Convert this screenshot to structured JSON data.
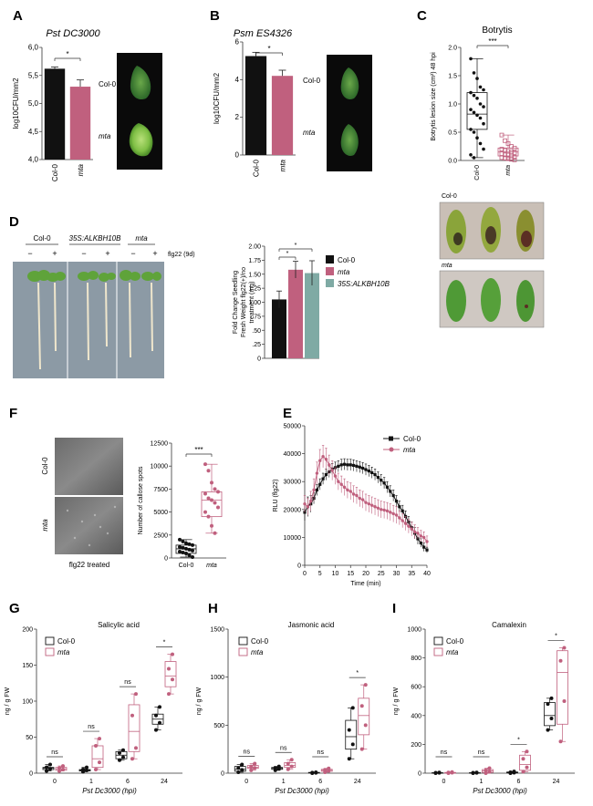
{
  "colors": {
    "col0": "#111111",
    "mta": "#c0607e",
    "alkbh": "#7faaa4",
    "axis": "#333333"
  },
  "A": {
    "letter": "A",
    "title": "Pst DC3000",
    "chart_data": {
      "type": "bar",
      "title": "Pst DC3000",
      "ylabel": "log10CFU/mm2",
      "ylim": [
        4.0,
        6.0
      ],
      "yticks": [
        "4,0",
        "4,5",
        "5,0",
        "5,5",
        "6,0"
      ],
      "categories": [
        "Col-0",
        "mta"
      ],
      "values": [
        5.62,
        5.3
      ],
      "errors": [
        0.03,
        0.12
      ],
      "significance": "*"
    },
    "leaf_labels": [
      "Col-0",
      "mta"
    ]
  },
  "B": {
    "letter": "B",
    "title": "Psm ES4326",
    "chart_data": {
      "type": "bar",
      "title": "Psm ES4326",
      "ylabel": "log10CFU/mm2",
      "ylim": [
        0,
        6
      ],
      "yticks": [
        "0",
        "2",
        "4",
        "6"
      ],
      "categories": [
        "Col-0",
        "mta"
      ],
      "values": [
        5.25,
        4.2
      ],
      "errors": [
        0.2,
        0.3
      ],
      "significance": "*"
    },
    "leaf_labels": [
      "Col-0",
      "mta"
    ]
  },
  "C": {
    "letter": "C",
    "title": "Botrytis",
    "chart_data": {
      "type": "box",
      "title": "Botrytis",
      "ylabel": "Botrytis lesion size (cm²) 48 hpi",
      "ylim": [
        0,
        2.0
      ],
      "yticks": [
        "0.0",
        "0.5",
        "1.0",
        "1.5",
        "2.0"
      ],
      "categories": [
        "Col-0",
        "mta"
      ],
      "significance": "***",
      "series": [
        {
          "name": "Col-0",
          "q1": 0.55,
          "median": 0.82,
          "q3": 1.2,
          "min": 0.05,
          "max": 1.8,
          "points": [
            1.8,
            1.55,
            1.45,
            1.3,
            1.25,
            1.2,
            1.15,
            1.1,
            1.0,
            0.95,
            0.9,
            0.85,
            0.8,
            0.75,
            0.65,
            0.55,
            0.5,
            0.4,
            0.3,
            0.2,
            0.1,
            0.05
          ]
        },
        {
          "name": "mta",
          "q1": 0.08,
          "median": 0.15,
          "q3": 0.22,
          "min": 0.01,
          "max": 0.45,
          "points": [
            0.45,
            0.35,
            0.3,
            0.25,
            0.22,
            0.2,
            0.18,
            0.16,
            0.15,
            0.14,
            0.12,
            0.1,
            0.1,
            0.08,
            0.06,
            0.05,
            0.04,
            0.03,
            0.02,
            0.01
          ]
        }
      ]
    },
    "photo_labels": [
      "Col-0",
      "mta"
    ]
  },
  "D": {
    "letter": "D",
    "genotypes": [
      "Col-0",
      "35S:ALKBH10B",
      "mta"
    ],
    "signs": [
      "−",
      "+",
      "−",
      "+",
      "−",
      "+"
    ],
    "treatment": "flg22 (9d)",
    "chart_data": {
      "type": "bar",
      "ylabel": "Fold Change Seedling Fresh Weight flg22(+)/no treatment (mg)",
      "ylim": [
        0,
        2.0
      ],
      "yticks": [
        "0",
        ".25",
        ".50",
        ".75",
        "1.00",
        "1.25",
        "1.50",
        "1.75",
        "2.00"
      ],
      "categories": [
        "Col-0",
        "mta",
        "35S:ALKBH10B"
      ],
      "values": [
        1.05,
        1.58,
        1.52
      ],
      "errors": [
        0.15,
        0.15,
        0.22
      ],
      "significance": [
        "*",
        "*"
      ],
      "legend": [
        "Col-0",
        "mta",
        "35S:ALKBH10B"
      ]
    }
  },
  "E": {
    "letter": "E",
    "chart_data": {
      "type": "line",
      "ylabel": "RLU (flg22)",
      "xlabel": "Time (min)",
      "xlim": [
        0,
        40
      ],
      "ylim": [
        0,
        50000
      ],
      "xticks": [
        "0",
        "5",
        "10",
        "15",
        "20",
        "25",
        "30",
        "35",
        "40"
      ],
      "yticks": [
        "0",
        "10000",
        "20000",
        "30000",
        "40000",
        "50000"
      ],
      "legend": [
        "Col-0",
        "mta"
      ],
      "series": [
        {
          "name": "Col-0",
          "x": [
            0,
            1,
            2,
            3,
            4,
            5,
            6,
            7,
            8,
            9,
            10,
            11,
            12,
            13,
            14,
            15,
            16,
            17,
            18,
            19,
            20,
            21,
            22,
            23,
            24,
            25,
            26,
            27,
            28,
            29,
            30,
            31,
            32,
            33,
            34,
            35,
            36,
            37,
            38,
            39,
            40
          ],
          "y": [
            19000,
            21000,
            22000,
            24000,
            27000,
            29000,
            31000,
            32500,
            33500,
            34500,
            35000,
            35500,
            36000,
            36200,
            36000,
            36000,
            35800,
            35500,
            35200,
            34800,
            34300,
            33800,
            33200,
            32500,
            31500,
            30500,
            29500,
            28000,
            26500,
            25000,
            23000,
            21000,
            19500,
            17500,
            15500,
            13500,
            11500,
            9500,
            8000,
            6500,
            5500
          ],
          "err": [
            3000,
            3500,
            3000,
            2000,
            2000,
            2000,
            2000,
            2000,
            2000,
            2000,
            2000,
            2000,
            2000,
            2000,
            2000,
            2000,
            2000,
            2000,
            2000,
            2000,
            2000,
            2000,
            2000,
            2000,
            2000,
            2000,
            2000,
            2000,
            2000,
            2000,
            2000,
            2000,
            2000,
            2000,
            2000,
            2000,
            2000,
            2000,
            1500,
            1500,
            1000
          ]
        },
        {
          "name": "mta",
          "x": [
            0,
            1,
            2,
            3,
            4,
            5,
            6,
            7,
            8,
            9,
            10,
            11,
            12,
            13,
            14,
            15,
            16,
            17,
            18,
            19,
            20,
            21,
            22,
            23,
            24,
            25,
            26,
            27,
            28,
            29,
            30,
            31,
            32,
            33,
            34,
            35,
            36,
            37,
            38,
            39,
            40
          ],
          "y": [
            22000,
            21000,
            23000,
            27000,
            33000,
            37500,
            39000,
            38000,
            36000,
            34000,
            32000,
            30000,
            29000,
            28000,
            27000,
            26500,
            25500,
            25000,
            24000,
            23500,
            22500,
            22000,
            21500,
            21000,
            20500,
            20000,
            19800,
            19500,
            19000,
            18500,
            18000,
            17000,
            16000,
            15000,
            14000,
            13000,
            12000,
            11500,
            10500,
            10000,
            8500
          ],
          "err": [
            3000,
            3000,
            3500,
            4000,
            4000,
            4000,
            4000,
            4000,
            3500,
            3500,
            3000,
            3000,
            3000,
            3000,
            3000,
            3000,
            3000,
            3000,
            3000,
            3000,
            3000,
            3000,
            3000,
            3000,
            3000,
            3000,
            3000,
            3000,
            3000,
            3000,
            3000,
            2500,
            2500,
            2500,
            2500,
            2500,
            2500,
            2000,
            2000,
            2000,
            2000
          ]
        }
      ]
    }
  },
  "F": {
    "letter": "F",
    "image_labels": [
      "Col-0",
      "mta"
    ],
    "caption": "flg22 treated",
    "chart_data": {
      "type": "box",
      "ylabel": "Number of callose spots",
      "ylim": [
        0,
        12500
      ],
      "yticks": [
        "0",
        "2500",
        "5000",
        "7500",
        "10000",
        "12500"
      ],
      "categories": [
        "Col-0",
        "mta"
      ],
      "significance": "***",
      "series": [
        {
          "name": "Col-0",
          "q1": 500,
          "median": 1000,
          "q3": 1400,
          "min": 100,
          "max": 2000,
          "points": [
            2000,
            1800,
            1600,
            1500,
            1400,
            1200,
            1100,
            1000,
            900,
            800,
            700,
            600,
            500,
            300,
            100
          ]
        },
        {
          "name": "mta",
          "q1": 4500,
          "median": 6300,
          "q3": 7200,
          "min": 2700,
          "max": 10200,
          "points": [
            10200,
            9500,
            8200,
            7500,
            7200,
            7000,
            6500,
            6300,
            6000,
            5500,
            5000,
            4500,
            3500,
            2700
          ]
        }
      ]
    }
  },
  "G": {
    "letter": "G",
    "chart_data": {
      "type": "box",
      "title": "Salicylic acid",
      "ylabel": "ng / g FW",
      "xlabel": "Pst Dc3000 (hpi)",
      "ylim": [
        0,
        200
      ],
      "yticks": [
        "0",
        "50",
        "100",
        "150",
        "200"
      ],
      "categories": [
        "0",
        "1",
        "6",
        "24"
      ],
      "significance": [
        "ns",
        "ns",
        "ns",
        "*"
      ],
      "legend": [
        "Col-0",
        "mta"
      ],
      "series": [
        {
          "name": "Col-0",
          "boxes": [
            [
              3,
              5,
              7,
              8,
              12
            ],
            [
              2,
              3,
              4,
              5,
              8
            ],
            [
              18,
              20,
              25,
              30,
              32
            ],
            [
              60,
              68,
              75,
              82,
              92
            ]
          ],
          "points": [
            [
              3,
              6,
              8,
              12
            ],
            [
              2,
              4,
              5,
              8
            ],
            [
              18,
              22,
              28,
              32
            ],
            [
              60,
              70,
              80,
              92
            ]
          ]
        },
        {
          "name": "mta",
          "boxes": [
            [
              3,
              4,
              6,
              8,
              10
            ],
            [
              5,
              8,
              20,
              38,
              48
            ],
            [
              20,
              30,
              58,
              95,
              110
            ],
            [
              110,
              120,
              135,
              155,
              165
            ]
          ],
          "points": [
            [
              3,
              5,
              7,
              10
            ],
            [
              5,
              15,
              38,
              48
            ],
            [
              20,
              35,
              80,
              110
            ],
            [
              110,
              130,
              145,
              165
            ]
          ]
        }
      ]
    }
  },
  "H": {
    "letter": "H",
    "chart_data": {
      "type": "box",
      "title": "Jasmonic acid",
      "ylabel": "ng / g FW",
      "xlabel": "Pst Dc3000 (hpi)",
      "ylim": [
        0,
        1500
      ],
      "yticks": [
        "0",
        "500",
        "1000",
        "1500"
      ],
      "categories": [
        "0",
        "1",
        "6",
        "24"
      ],
      "significance": [
        "ns",
        "ns",
        "ns",
        "*"
      ],
      "legend": [
        "Col-0",
        "mta"
      ],
      "series": [
        {
          "name": "Col-0",
          "boxes": [
            [
              10,
              20,
              40,
              70,
              90
            ],
            [
              30,
              40,
              50,
              60,
              70
            ],
            [
              0,
              2,
              5,
              8,
              10
            ],
            [
              150,
              250,
              380,
              550,
              680
            ]
          ],
          "points": [
            [
              10,
              35,
              55,
              90
            ],
            [
              30,
              45,
              55,
              70
            ],
            [
              0,
              4,
              6,
              10
            ],
            [
              150,
              300,
              450,
              680
            ]
          ]
        },
        {
          "name": "mta",
          "boxes": [
            [
              30,
              50,
              60,
              80,
              100
            ],
            [
              40,
              60,
              80,
              110,
              140
            ],
            [
              10,
              20,
              30,
              40,
              50
            ],
            [
              250,
              400,
              600,
              780,
              920
            ]
          ],
          "points": [
            [
              30,
              55,
              70,
              100
            ],
            [
              40,
              70,
              100,
              140
            ],
            [
              10,
              25,
              35,
              50
            ],
            [
              250,
              500,
              700,
              920
            ]
          ]
        }
      ]
    }
  },
  "I": {
    "letter": "I",
    "chart_data": {
      "type": "box",
      "title": "Camalexin",
      "ylabel": "ng / g FW",
      "xlabel": "Pst Dc3000 (hpi)",
      "ylim": [
        0,
        1000
      ],
      "yticks": [
        "0",
        "200",
        "400",
        "600",
        "800",
        "1000"
      ],
      "categories": [
        "0",
        "1",
        "6",
        "24"
      ],
      "significance": [
        "ns",
        "ns",
        "*",
        "*"
      ],
      "legend": [
        "Col-0",
        "mta"
      ],
      "series": [
        {
          "name": "Col-0",
          "boxes": [
            [
              0,
              0,
              2,
              3,
              5
            ],
            [
              0,
              0,
              2,
              3,
              5
            ],
            [
              0,
              2,
              5,
              8,
              12
            ],
            [
              300,
              330,
              400,
              490,
              520
            ]
          ],
          "points": [
            [
              0,
              2,
              3,
              5
            ],
            [
              0,
              2,
              3,
              5
            ],
            [
              0,
              3,
              6,
              12
            ],
            [
              300,
              380,
              480,
              520
            ]
          ]
        },
        {
          "name": "mta",
          "boxes": [
            [
              0,
              0,
              3,
              5,
              8
            ],
            [
              0,
              5,
              15,
              25,
              35
            ],
            [
              10,
              20,
              60,
              125,
              150
            ],
            [
              220,
              340,
              700,
              850,
              870
            ]
          ],
          "points": [
            [
              0,
              3,
              5,
              8
            ],
            [
              0,
              10,
              20,
              35
            ],
            [
              10,
              40,
              100,
              150
            ],
            [
              220,
              500,
              780,
              870
            ]
          ]
        }
      ]
    }
  }
}
